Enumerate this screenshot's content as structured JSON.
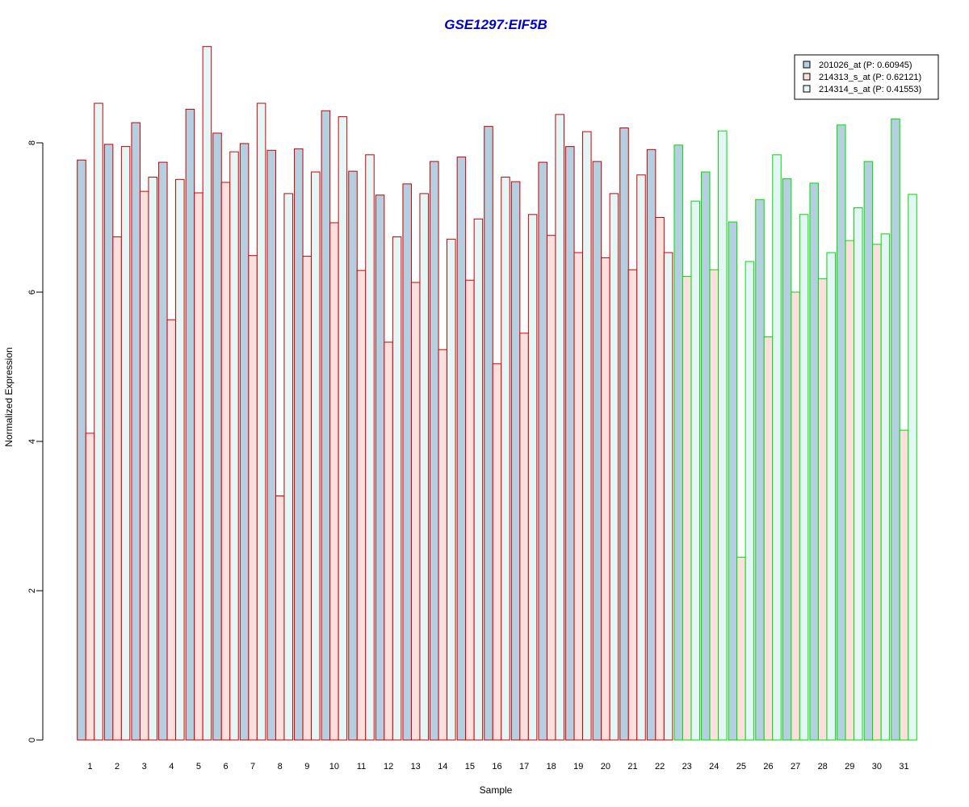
{
  "chart_data": {
    "type": "bar",
    "title": "GSE1297:EIF5B",
    "xlabel": "Sample",
    "ylabel": "Normalized Expression",
    "ylim": [
      0,
      9.3
    ],
    "yticks": [
      0,
      2,
      4,
      6,
      8
    ],
    "categories": [
      "1",
      "2",
      "3",
      "4",
      "5",
      "6",
      "7",
      "8",
      "9",
      "10",
      "11",
      "12",
      "13",
      "14",
      "15",
      "16",
      "17",
      "18",
      "19",
      "20",
      "21",
      "22",
      "23",
      "24",
      "25",
      "26",
      "27",
      "28",
      "29",
      "30",
      "31"
    ],
    "group_colors": {
      "group1": "#cc0000",
      "group2": "#00dd00"
    },
    "group2_start": 23,
    "legend_position": "top-right",
    "grid": false,
    "series": [
      {
        "name": "201026_at (P: 0.60945)",
        "fill": "#b3cfe0",
        "values": [
          7.77,
          7.98,
          8.27,
          7.74,
          8.45,
          8.13,
          7.99,
          7.9,
          7.92,
          8.43,
          7.62,
          7.3,
          7.45,
          7.75,
          7.81,
          8.22,
          7.48,
          7.74,
          7.95,
          7.75,
          8.2,
          7.91,
          7.97,
          7.61,
          6.94,
          7.24,
          7.52,
          7.46,
          8.24,
          7.75,
          8.32
        ]
      },
      {
        "name": "214313_s_at (P: 0.62121)",
        "fill": "#fde0de",
        "values": [
          4.11,
          6.74,
          7.35,
          5.63,
          7.33,
          7.47,
          6.49,
          3.27,
          6.48,
          6.93,
          6.29,
          5.33,
          6.13,
          5.23,
          6.16,
          5.04,
          5.45,
          6.76,
          6.53,
          6.46,
          6.3,
          7.0,
          6.21,
          6.3,
          2.45,
          5.4,
          6.0,
          6.18,
          6.69,
          6.64,
          4.15
        ]
      },
      {
        "name": "214314_s_at (P: 0.41553)",
        "fill": "#e4f6f5",
        "values": [
          8.53,
          7.95,
          7.54,
          7.51,
          9.29,
          7.88,
          8.53,
          7.32,
          7.61,
          8.35,
          7.84,
          6.74,
          7.32,
          6.71,
          6.98,
          7.54,
          7.04,
          8.38,
          8.15,
          7.32,
          7.57,
          6.53,
          7.22,
          8.16,
          6.41,
          7.84,
          7.04,
          6.53,
          7.13,
          6.78,
          7.31
        ]
      }
    ]
  }
}
